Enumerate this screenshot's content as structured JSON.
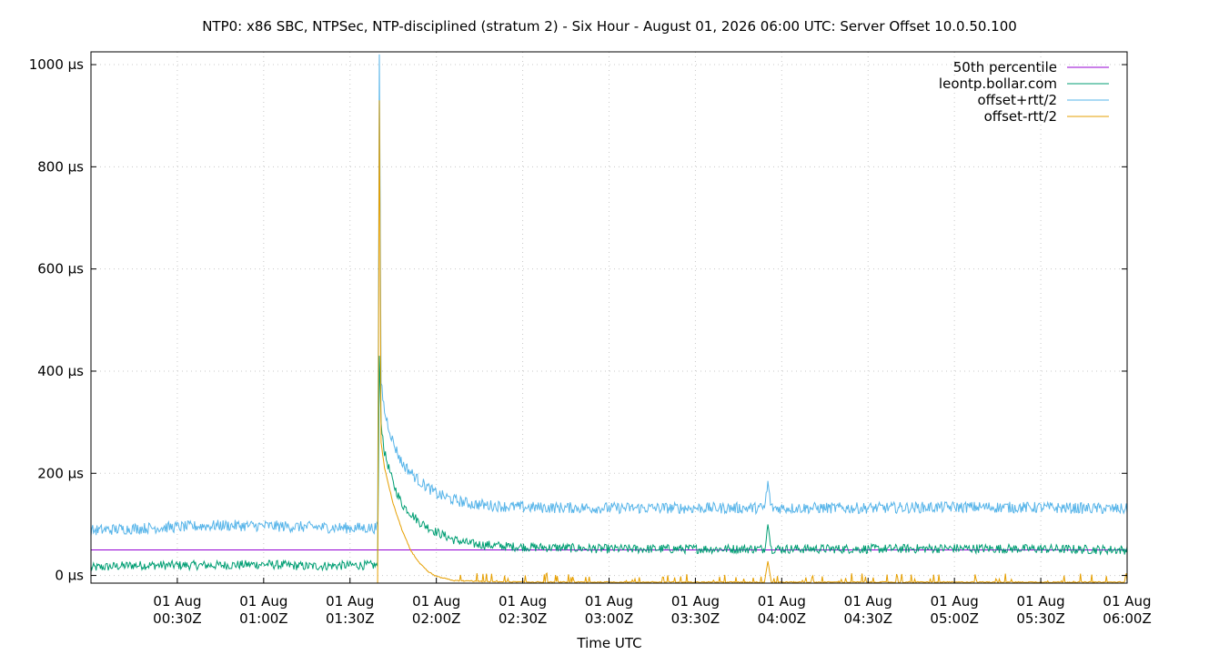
{
  "chart_data": {
    "type": "line",
    "title": "NTP0: x86 SBC, NTPSec, NTP-disciplined (stratum 2) - Six Hour - August 01, 2026 06:00 UTC: Server Offset 10.0.50.100",
    "xlabel": "Time UTC",
    "ylabel": "",
    "x_range_hours_utc": [
      0.0,
      6.0
    ],
    "ylim": [
      -15,
      1025
    ],
    "y_unit": "µs",
    "grid": true,
    "legend_position": "top-right",
    "x_ticks": [
      {
        "value": 0.5,
        "line1": "01 Aug",
        "line2": "00:30Z"
      },
      {
        "value": 1.0,
        "line1": "01 Aug",
        "line2": "01:00Z"
      },
      {
        "value": 1.5,
        "line1": "01 Aug",
        "line2": "01:30Z"
      },
      {
        "value": 2.0,
        "line1": "01 Aug",
        "line2": "02:00Z"
      },
      {
        "value": 2.5,
        "line1": "01 Aug",
        "line2": "02:30Z"
      },
      {
        "value": 3.0,
        "line1": "01 Aug",
        "line2": "03:00Z"
      },
      {
        "value": 3.5,
        "line1": "01 Aug",
        "line2": "03:30Z"
      },
      {
        "value": 4.0,
        "line1": "01 Aug",
        "line2": "04:00Z"
      },
      {
        "value": 4.5,
        "line1": "01 Aug",
        "line2": "04:30Z"
      },
      {
        "value": 5.0,
        "line1": "01 Aug",
        "line2": "05:00Z"
      },
      {
        "value": 5.5,
        "line1": "01 Aug",
        "line2": "05:30Z"
      },
      {
        "value": 6.0,
        "line1": "01 Aug",
        "line2": "06:00Z"
      }
    ],
    "y_ticks": [
      {
        "value": 0,
        "label": "0 µs"
      },
      {
        "value": 200,
        "label": "200 µs"
      },
      {
        "value": 400,
        "label": "400 µs"
      },
      {
        "value": 600,
        "label": "600 µs"
      },
      {
        "value": 800,
        "label": "800 µs"
      },
      {
        "value": 1000,
        "label": "1000 µs"
      }
    ],
    "series": [
      {
        "name": "50th percentile",
        "color": "#9400d3",
        "x": [
          0.0,
          6.0
        ],
        "y": [
          50,
          50
        ]
      },
      {
        "name": "leontp.bollar.com",
        "color": "#009e73",
        "x": [
          0.0,
          0.25,
          0.5,
          0.75,
          1.0,
          1.25,
          1.5,
          1.66,
          1.67,
          1.68,
          1.7,
          1.75,
          1.8,
          1.9,
          2.0,
          2.1,
          2.2,
          2.4,
          2.6,
          3.0,
          3.5,
          3.9,
          3.92,
          3.94,
          4.5,
          5.0,
          5.5,
          6.0
        ],
        "y": [
          15,
          20,
          20,
          20,
          22,
          18,
          20,
          20,
          430,
          300,
          240,
          180,
          140,
          105,
          85,
          70,
          62,
          57,
          55,
          52,
          52,
          52,
          100,
          52,
          52,
          53,
          52,
          50
        ]
      },
      {
        "name": "offset+rtt/2",
        "color": "#56b4e9",
        "x": [
          0.0,
          0.25,
          0.5,
          0.75,
          1.0,
          1.25,
          1.5,
          1.66,
          1.67,
          1.68,
          1.7,
          1.75,
          1.8,
          1.9,
          2.0,
          2.1,
          2.2,
          2.4,
          2.6,
          3.0,
          3.5,
          3.9,
          3.92,
          3.94,
          4.5,
          5.0,
          5.5,
          6.0
        ],
        "y": [
          88,
          92,
          95,
          98,
          97,
          95,
          93,
          93,
          1020,
          380,
          320,
          260,
          220,
          185,
          160,
          148,
          140,
          135,
          133,
          132,
          132,
          132,
          180,
          132,
          132,
          134,
          133,
          130
        ]
      },
      {
        "name": "offset-rtt/2",
        "color": "#e69f00",
        "x": [
          1.66,
          1.67,
          1.68,
          1.7,
          1.75,
          1.8,
          1.85,
          1.9,
          1.95,
          2.0,
          2.1,
          2.3,
          2.6,
          3.0,
          3.5,
          3.9,
          3.92,
          3.94,
          4.5,
          5.0,
          5.5,
          6.0
        ],
        "y": [
          -15,
          930,
          260,
          210,
          140,
          90,
          50,
          25,
          8,
          -2,
          -10,
          -12,
          -13,
          -13,
          -13,
          -13,
          28,
          -13,
          -13,
          -13,
          -13,
          -13
        ]
      }
    ]
  }
}
